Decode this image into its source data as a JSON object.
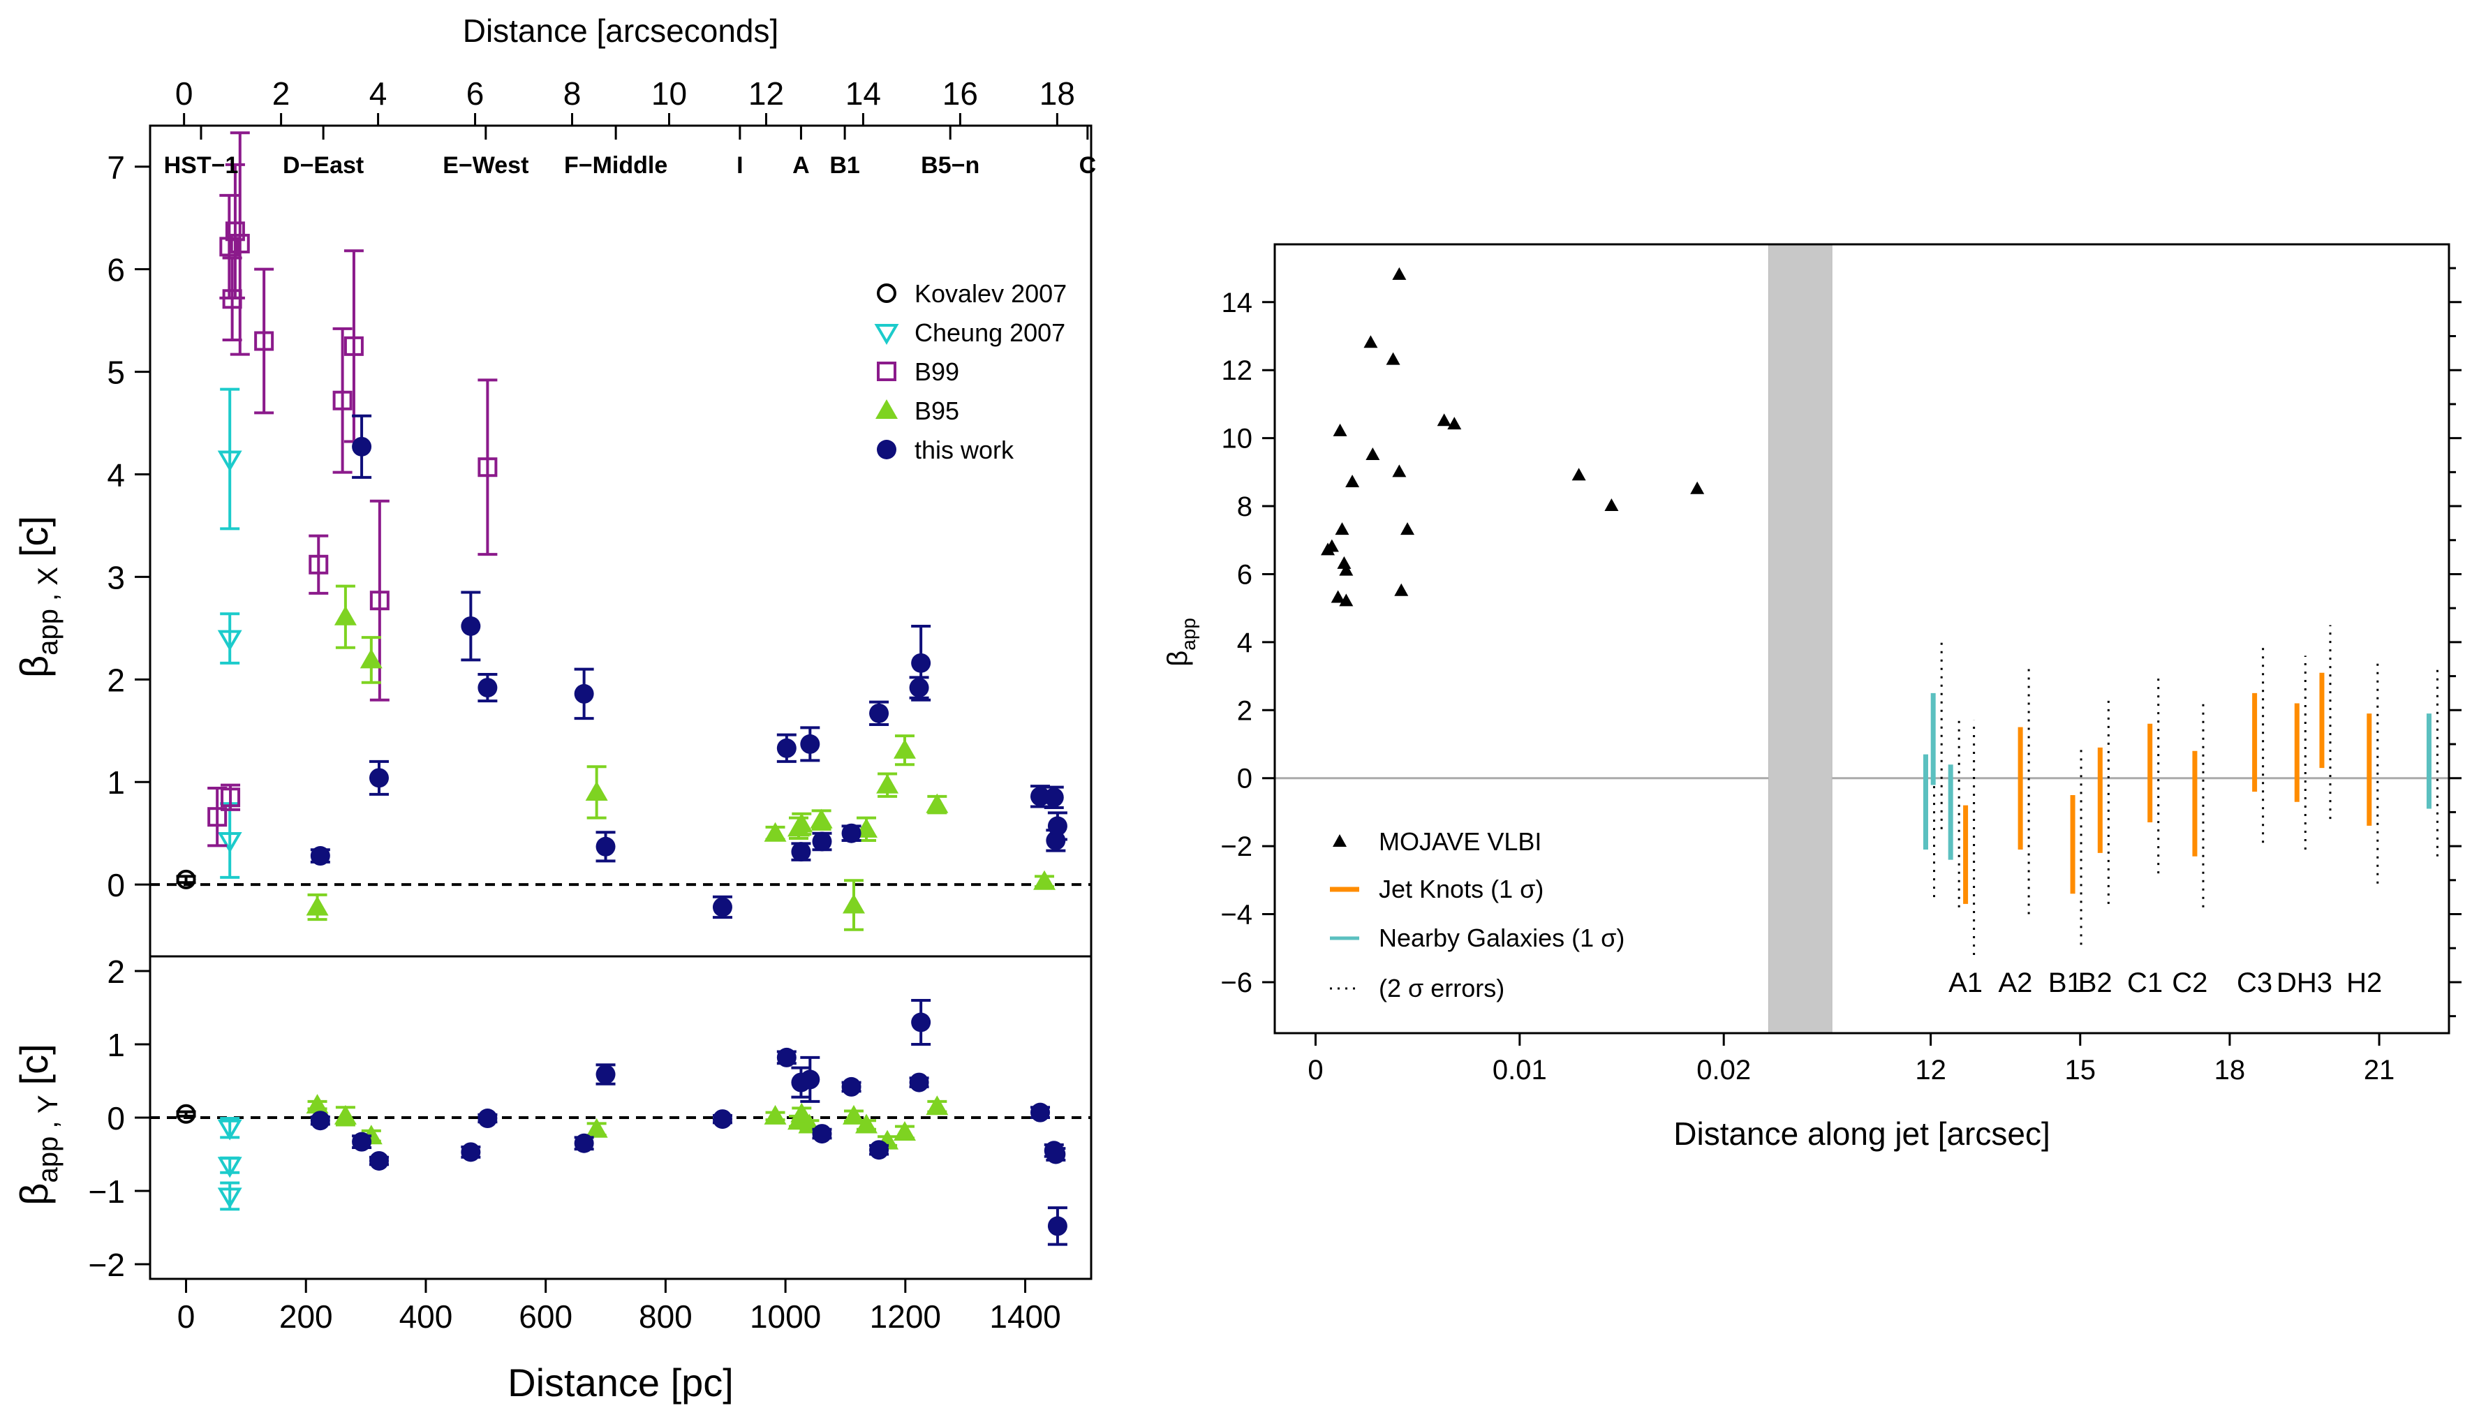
{
  "colors": {
    "kovalev": "#000000",
    "cheung": "#1ccbcb",
    "b99": "#8b1a8b",
    "b95": "#7ed321",
    "this_work": "#0e0e7a",
    "mojave": "#000000",
    "jet_knots": "#ff8c00",
    "nearby": "#5bc0c0",
    "band": "#c8c8c8",
    "zero_line": "#aaaaaa"
  },
  "chart_data": [
    {
      "id": "left-top",
      "type": "scatter",
      "top_xlabel": "Distance [arcseconds]",
      "top_xticks": [
        0,
        2,
        4,
        6,
        8,
        10,
        12,
        14,
        16,
        18
      ],
      "top_xlim": [
        -0.7,
        18.7
      ],
      "xlim": [
        -60,
        1510
      ],
      "ylim": [
        -0.7,
        7.4
      ],
      "yticks": [
        0,
        1,
        2,
        3,
        4,
        5,
        6,
        7
      ],
      "ylabel_main": "β",
      "ylabel_sub": "app , X",
      "ylabel_unit": "[c]",
      "knots": [
        {
          "name": "HST−1",
          "x": 25
        },
        {
          "name": "D−East",
          "x": 229
        },
        {
          "name": "E−West",
          "x": 500
        },
        {
          "name": "F−Middle",
          "x": 717
        },
        {
          "name": "I",
          "x": 924
        },
        {
          "name": "A",
          "x": 1026
        },
        {
          "name": "B1",
          "x": 1099
        },
        {
          "name": "B5−n",
          "x": 1275
        },
        {
          "name": "C",
          "x": 1504
        }
      ],
      "legend": [
        "Kovalev 2007",
        "Cheung 2007",
        "B99",
        "B95",
        "this work"
      ],
      "series": [
        {
          "name": "Kovalev 2007",
          "marker": "circle-open",
          "points": [
            [
              0,
              0.05,
              0.03
            ]
          ]
        },
        {
          "name": "Cheung 2007",
          "marker": "tri-down-open",
          "points": [
            [
              73,
              4.15,
              0.68
            ],
            [
              73,
              2.4,
              0.24
            ],
            [
              73,
              0.43,
              0.36
            ]
          ]
        },
        {
          "name": "B99",
          "marker": "square-open",
          "points": [
            [
              52,
              0.66,
              0.28
            ],
            [
              72,
              6.22,
              0.5
            ],
            [
              77,
              5.71,
              0.4
            ],
            [
              82,
              6.37,
              0.65
            ],
            [
              90,
              6.25,
              1.08
            ],
            [
              130,
              5.3,
              0.7
            ],
            [
              74,
              0.85,
              0.12
            ],
            [
              221,
              3.12,
              0.28
            ],
            [
              261,
              4.72,
              0.7
            ],
            [
              280,
              5.25,
              0.93
            ],
            [
              323,
              2.77,
              0.97
            ],
            [
              503,
              4.07,
              0.85
            ]
          ]
        },
        {
          "name": "B95",
          "marker": "tri-up-filled",
          "points": [
            [
              219,
              -0.22,
              0.12
            ],
            [
              266,
              2.61,
              0.3
            ],
            [
              309,
              2.19,
              0.22
            ],
            [
              685,
              0.9,
              0.25
            ],
            [
              983,
              0.5,
              0.06
            ],
            [
              1022,
              0.55,
              0.1
            ],
            [
              1027,
              0.59,
              0.1
            ],
            [
              1060,
              0.63,
              0.09
            ],
            [
              1114,
              -0.2,
              0.24
            ],
            [
              1135,
              0.54,
              0.11
            ],
            [
              1170,
              0.97,
              0.11
            ],
            [
              1199,
              1.31,
              0.14
            ],
            [
              1253,
              0.78,
              0.08
            ],
            [
              1432,
              0.03,
              0.05
            ]
          ]
        },
        {
          "name": "this work",
          "marker": "circle-filled",
          "points": [
            [
              224,
              0.28,
              0.06
            ],
            [
              293,
              4.27,
              0.3
            ],
            [
              322,
              1.04,
              0.16
            ],
            [
              475,
              2.52,
              0.33
            ],
            [
              503,
              1.92,
              0.13
            ],
            [
              664,
              1.86,
              0.24
            ],
            [
              700,
              0.37,
              0.14
            ],
            [
              895,
              -0.22,
              0.1
            ],
            [
              1002,
              1.33,
              0.13
            ],
            [
              1026,
              0.32,
              0.08
            ],
            [
              1041,
              1.37,
              0.16
            ],
            [
              1061,
              0.42,
              0.08
            ],
            [
              1110,
              0.5,
              0.07
            ],
            [
              1156,
              1.67,
              0.11
            ],
            [
              1223,
              1.92,
              0.1
            ],
            [
              1226,
              2.16,
              0.36
            ],
            [
              1425,
              0.86,
              0.1
            ],
            [
              1448,
              0.85,
              0.1
            ],
            [
              1451,
              0.43,
              0.1
            ],
            [
              1454,
              0.57,
              0.13
            ]
          ]
        }
      ]
    },
    {
      "id": "left-bottom",
      "type": "scatter",
      "xlabel": "Distance [pc]",
      "xticks": [
        0,
        200,
        400,
        600,
        800,
        1000,
        1200,
        1400
      ],
      "xlim": [
        -60,
        1510
      ],
      "ylim": [
        -2.2,
        2.2
      ],
      "yticks": [
        -2,
        -1,
        0,
        1,
        2
      ],
      "ylabel_main": "β",
      "ylabel_sub": "app , Y",
      "ylabel_unit": "[c]",
      "series": [
        {
          "name": "Kovalev 2007",
          "marker": "circle-open",
          "points": [
            [
              0,
              0.05,
              0.03
            ]
          ]
        },
        {
          "name": "Cheung 2007",
          "marker": "tri-down-open",
          "points": [
            [
              73,
              -0.14,
              0.13
            ],
            [
              73,
              -0.65,
              0.1
            ],
            [
              73,
              -1.07,
              0.18
            ]
          ]
        },
        {
          "name": "B95",
          "marker": "tri-up-filled",
          "points": [
            [
              219,
              0.17,
              0.05
            ],
            [
              266,
              0.02,
              0.12
            ],
            [
              309,
              -0.25,
              0.07
            ],
            [
              685,
              -0.16,
              0.08
            ],
            [
              983,
              0.02,
              0.05
            ],
            [
              1022,
              -0.05,
              0.07
            ],
            [
              1027,
              0.05,
              0.08
            ],
            [
              1040,
              -0.1,
              0.06
            ],
            [
              1114,
              0.02,
              0.07
            ],
            [
              1135,
              -0.1,
              0.06
            ],
            [
              1170,
              -0.32,
              0.06
            ],
            [
              1199,
              -0.2,
              0.08
            ],
            [
              1253,
              0.15,
              0.07
            ]
          ]
        },
        {
          "name": "this work",
          "marker": "circle-filled",
          "points": [
            [
              224,
              -0.04,
              0.05
            ],
            [
              293,
              -0.33,
              0.08
            ],
            [
              322,
              -0.59,
              0.05
            ],
            [
              475,
              -0.47,
              0.07
            ],
            [
              503,
              -0.01,
              0.05
            ],
            [
              664,
              -0.35,
              0.08
            ],
            [
              700,
              0.59,
              0.13
            ],
            [
              895,
              -0.02,
              0.05
            ],
            [
              1002,
              0.82,
              0.08
            ],
            [
              1026,
              0.48,
              0.2
            ],
            [
              1041,
              0.52,
              0.3
            ],
            [
              1061,
              -0.22,
              0.06
            ],
            [
              1110,
              0.42,
              0.06
            ],
            [
              1156,
              -0.44,
              0.06
            ],
            [
              1223,
              0.48,
              0.06
            ],
            [
              1226,
              1.3,
              0.3
            ],
            [
              1425,
              0.07,
              0.07
            ],
            [
              1448,
              -0.45,
              0.08
            ],
            [
              1451,
              -0.5,
              0.08
            ],
            [
              1454,
              -1.48,
              0.25
            ]
          ]
        }
      ]
    },
    {
      "id": "right",
      "type": "scatter",
      "xlabel": "Distance along jet [arcsec]",
      "ylabel_main": "β",
      "ylabel_sub": "app",
      "ylim": [
        -7.5,
        15.7
      ],
      "yticks": [
        -6,
        -4,
        -2,
        0,
        2,
        4,
        6,
        8,
        10,
        12,
        14
      ],
      "xlim_left": [
        -0.002,
        0.0255
      ],
      "xticks_left": [
        0,
        0.01,
        0.02
      ],
      "xtick_labels_left": [
        "0",
        "0.01",
        "0.02"
      ],
      "xlim_right": [
        10.1,
        22.4
      ],
      "xticks_right": [
        12,
        15,
        18,
        21
      ],
      "band": [
        0.0222,
        0.0253
      ],
      "legend": [
        "MOJAVE VLBI",
        "Jet Knots (1 σ)",
        "Nearby Galaxies (1 σ)",
        "(2 σ  errors)"
      ],
      "mojave": [
        [
          0.0006,
          6.7
        ],
        [
          0.0008,
          6.8
        ],
        [
          0.0011,
          5.3
        ],
        [
          0.0012,
          10.2
        ],
        [
          0.0013,
          7.3
        ],
        [
          0.0014,
          6.3
        ],
        [
          0.0015,
          5.2
        ],
        [
          0.0015,
          6.1
        ],
        [
          0.0018,
          8.7
        ],
        [
          0.0027,
          12.8
        ],
        [
          0.0028,
          9.5
        ],
        [
          0.0038,
          12.3
        ],
        [
          0.0041,
          14.8
        ],
        [
          0.0041,
          9.0
        ],
        [
          0.0042,
          5.5
        ],
        [
          0.0045,
          7.3
        ],
        [
          0.0063,
          10.5
        ],
        [
          0.0068,
          10.4
        ],
        [
          0.0129,
          8.9
        ],
        [
          0.0145,
          8.0
        ],
        [
          0.0187,
          8.5
        ]
      ],
      "knot_labels": [
        {
          "name": "A1",
          "x": 12.7
        },
        {
          "name": "A2",
          "x": 13.7
        },
        {
          "name": "B1",
          "x": 14.7
        },
        {
          "name": "B2",
          "x": 15.3
        },
        {
          "name": "C1",
          "x": 16.3
        },
        {
          "name": "C2",
          "x": 17.2
        },
        {
          "name": "C3",
          "x": 18.5
        },
        {
          "name": "DH3",
          "x": 19.5
        },
        {
          "name": "H2",
          "x": 20.7
        }
      ],
      "knot_bars": [
        [
          12.7,
          -3.7,
          -0.8,
          -5.2,
          1.7
        ],
        [
          13.8,
          -2.1,
          1.5,
          -4.0,
          3.3
        ],
        [
          14.85,
          -3.4,
          -0.5,
          -4.9,
          0.9
        ],
        [
          15.4,
          -2.2,
          0.9,
          -3.7,
          2.4
        ],
        [
          16.4,
          -1.3,
          1.6,
          -2.8,
          3.1
        ],
        [
          17.3,
          -2.3,
          0.8,
          -3.8,
          2.3
        ],
        [
          18.5,
          -0.4,
          2.5,
          -1.9,
          4.0
        ],
        [
          19.35,
          -0.7,
          2.2,
          -2.1,
          3.6
        ],
        [
          19.85,
          0.3,
          3.1,
          -1.2,
          4.5
        ],
        [
          20.8,
          -1.4,
          1.9,
          -3.1,
          3.5
        ]
      ],
      "nearby_bars": [
        [
          11.9,
          -2.1,
          0.7,
          -3.5,
          2.1
        ],
        [
          12.05,
          -0.2,
          2.5,
          -1.5,
          4.0
        ],
        [
          12.4,
          -2.4,
          0.4,
          -3.8,
          1.8
        ],
        [
          22.0,
          -0.9,
          1.9,
          -2.3,
          3.3
        ]
      ]
    }
  ]
}
